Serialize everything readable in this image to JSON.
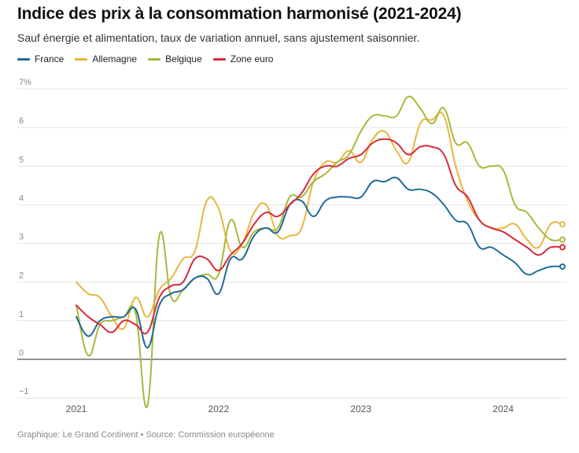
{
  "header": {
    "title": "Indice des prix à la consommation harmonisé (2021-2024)",
    "subtitle": "Sauf énergie et alimentation, taux de variation annuel, sans ajustement saisonnier."
  },
  "footer": {
    "source": "Graphique: Le Grand Continent • Source: Commission européenne"
  },
  "chart_data": {
    "type": "line",
    "title": "Indice des prix à la consommation harmonisé (2021-2024)",
    "subtitle": "Sauf énergie et alimentation, taux de variation annuel, sans ajustement saisonnier.",
    "xlabel": "",
    "ylabel": "",
    "ylim": [
      -1.2,
      7.3
    ],
    "y_ticks": [
      {
        "value": 7,
        "label": "7%"
      },
      {
        "value": 6,
        "label": "6"
      },
      {
        "value": 5,
        "label": "5"
      },
      {
        "value": 4,
        "label": "4"
      },
      {
        "value": 3,
        "label": "3"
      },
      {
        "value": 2,
        "label": "2"
      },
      {
        "value": 1,
        "label": "1"
      },
      {
        "value": 0,
        "label": "0"
      },
      {
        "value": -1,
        "label": "−1"
      }
    ],
    "x_ticks": [
      {
        "value": "2021-01",
        "label": "2021"
      },
      {
        "value": "2022-01",
        "label": "2022"
      },
      {
        "value": "2023-01",
        "label": "2023"
      },
      {
        "value": "2024-01",
        "label": "2024"
      }
    ],
    "grid": true,
    "legend_position": "top-left",
    "x": [
      "2021-01",
      "2021-02",
      "2021-03",
      "2021-04",
      "2021-05",
      "2021-06",
      "2021-07",
      "2021-08",
      "2021-09",
      "2021-10",
      "2021-11",
      "2021-12",
      "2022-01",
      "2022-02",
      "2022-03",
      "2022-04",
      "2022-05",
      "2022-06",
      "2022-07",
      "2022-08",
      "2022-09",
      "2022-10",
      "2022-11",
      "2022-12",
      "2023-01",
      "2023-02",
      "2023-03",
      "2023-04",
      "2023-05",
      "2023-06",
      "2023-07",
      "2023-08",
      "2023-09",
      "2023-10",
      "2023-11",
      "2023-12",
      "2024-01",
      "2024-02",
      "2024-03",
      "2024-04",
      "2024-05",
      "2024-06"
    ],
    "series": [
      {
        "name": "France",
        "color": "#1f6b97",
        "values": [
          1.1,
          0.6,
          1.0,
          1.1,
          1.1,
          1.3,
          0.3,
          1.4,
          1.7,
          1.8,
          2.1,
          2.1,
          1.7,
          2.6,
          2.6,
          3.2,
          3.4,
          3.3,
          4.0,
          4.1,
          3.7,
          4.1,
          4.2,
          4.2,
          4.2,
          4.6,
          4.6,
          4.7,
          4.4,
          4.4,
          4.3,
          4.0,
          3.6,
          3.5,
          2.9,
          2.9,
          2.7,
          2.5,
          2.2,
          2.3,
          2.4,
          2.4
        ]
      },
      {
        "name": "Allemagne",
        "color": "#e8b63e",
        "values": [
          2.0,
          1.7,
          1.6,
          1.1,
          0.8,
          1.6,
          1.1,
          1.8,
          2.1,
          2.6,
          2.8,
          4.1,
          3.9,
          2.8,
          3.0,
          3.8,
          4.0,
          3.2,
          3.2,
          3.4,
          4.6,
          5.1,
          5.1,
          5.4,
          5.1,
          5.7,
          5.9,
          5.4,
          5.1,
          6.1,
          6.2,
          6.3,
          5.0,
          4.1,
          3.6,
          3.4,
          3.4,
          3.5,
          3.1,
          2.9,
          3.5,
          3.5
        ]
      },
      {
        "name": "Belgique",
        "color": "#a9b73b",
        "values": [
          1.4,
          0.1,
          0.9,
          1.0,
          1.1,
          1.2,
          -1.2,
          3.2,
          1.6,
          1.8,
          2.1,
          2.2,
          2.2,
          3.6,
          2.9,
          3.3,
          3.4,
          3.4,
          4.2,
          4.2,
          4.6,
          4.8,
          5.1,
          5.3,
          5.9,
          6.3,
          6.3,
          6.3,
          6.8,
          6.5,
          6.1,
          6.5,
          5.6,
          5.6,
          5.0,
          5.0,
          4.9,
          4.0,
          3.8,
          3.4,
          3.1,
          3.1
        ]
      },
      {
        "name": "Zone euro",
        "color": "#d62a3e",
        "values": [
          1.4,
          1.1,
          0.9,
          0.7,
          1.0,
          0.9,
          0.7,
          1.6,
          1.9,
          2.0,
          2.6,
          2.6,
          2.3,
          2.7,
          3.0,
          3.5,
          3.8,
          3.7,
          4.0,
          4.3,
          4.8,
          5.0,
          5.0,
          5.2,
          5.3,
          5.6,
          5.7,
          5.6,
          5.3,
          5.5,
          5.5,
          5.3,
          4.5,
          4.2,
          3.6,
          3.4,
          3.3,
          3.1,
          2.9,
          2.7,
          2.9,
          2.9
        ]
      }
    ]
  }
}
